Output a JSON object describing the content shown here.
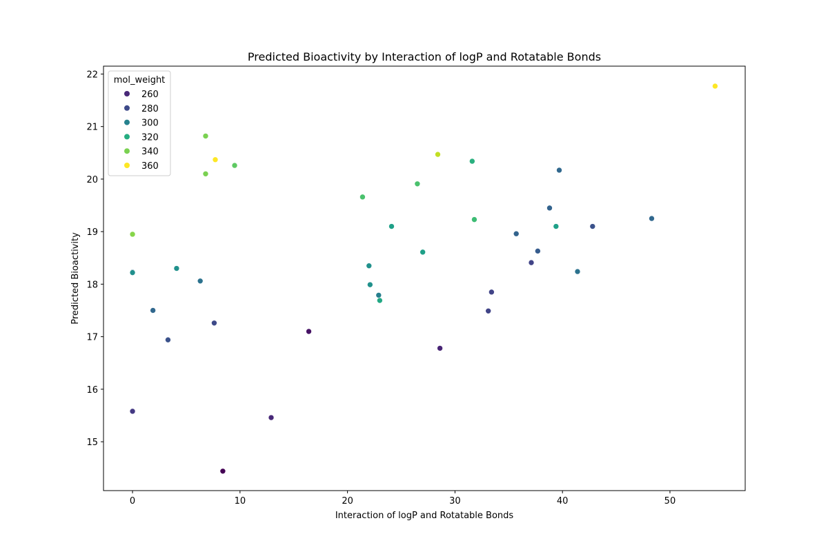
{
  "chart_data": {
    "type": "scatter",
    "title": "Predicted Bioactivity by Interaction of logP and Rotatable Bonds",
    "xlabel": "Interaction of logP and Rotatable Bonds",
    "ylabel": "Predicted Bioactivity",
    "xlim": [
      -2.7,
      57.0
    ],
    "ylim": [
      14.07,
      22.15
    ],
    "xticks": [
      "0",
      "10",
      "20",
      "30",
      "40",
      "50"
    ],
    "yticks": [
      "15",
      "16",
      "17",
      "18",
      "19",
      "20",
      "21",
      "22"
    ],
    "grid": false,
    "legend": {
      "title": "mol_weight",
      "placement": "top-left",
      "entries": [
        {
          "label": "260",
          "color": "#482878"
        },
        {
          "label": "280",
          "color": "#3e4a89"
        },
        {
          "label": "300",
          "color": "#26828e"
        },
        {
          "label": "320",
          "color": "#26ad81"
        },
        {
          "label": "340",
          "color": "#7ad151"
        },
        {
          "label": "360",
          "color": "#fde725"
        }
      ]
    },
    "points": [
      {
        "x": 0.0,
        "y": 18.95,
        "color": "#86d549"
      },
      {
        "x": 0.0,
        "y": 18.23,
        "color": "#2c728e"
      },
      {
        "x": 0.0,
        "y": 18.22,
        "color": "#21908d"
      },
      {
        "x": 0.0,
        "y": 15.58,
        "color": "#443983"
      },
      {
        "x": 1.9,
        "y": 17.5,
        "color": "#31688e"
      },
      {
        "x": 3.3,
        "y": 16.94,
        "color": "#3b528b"
      },
      {
        "x": 4.1,
        "y": 18.3,
        "color": "#21918c"
      },
      {
        "x": 6.3,
        "y": 18.06,
        "color": "#2c728e"
      },
      {
        "x": 6.8,
        "y": 20.82,
        "color": "#7ad151"
      },
      {
        "x": 6.8,
        "y": 20.1,
        "color": "#7ad151"
      },
      {
        "x": 7.6,
        "y": 17.26,
        "color": "#3e4a89"
      },
      {
        "x": 7.7,
        "y": 20.37,
        "color": "#fde725"
      },
      {
        "x": 8.4,
        "y": 14.44,
        "color": "#440154"
      },
      {
        "x": 9.5,
        "y": 20.26,
        "color": "#5ec962"
      },
      {
        "x": 12.9,
        "y": 15.46,
        "color": "#482878"
      },
      {
        "x": 16.4,
        "y": 17.1,
        "color": "#471365"
      },
      {
        "x": 21.4,
        "y": 19.66,
        "color": "#4ac16d"
      },
      {
        "x": 22.0,
        "y": 18.35,
        "color": "#21918c"
      },
      {
        "x": 22.1,
        "y": 17.99,
        "color": "#21918c"
      },
      {
        "x": 22.9,
        "y": 17.79,
        "color": "#277f8e"
      },
      {
        "x": 23.0,
        "y": 17.69,
        "color": "#22a884"
      },
      {
        "x": 24.1,
        "y": 19.1,
        "color": "#1fa088"
      },
      {
        "x": 26.5,
        "y": 19.91,
        "color": "#4ac16d"
      },
      {
        "x": 27.0,
        "y": 18.61,
        "color": "#1fa088"
      },
      {
        "x": 28.4,
        "y": 20.47,
        "color": "#c2df23"
      },
      {
        "x": 28.6,
        "y": 16.78,
        "color": "#482475"
      },
      {
        "x": 31.6,
        "y": 20.34,
        "color": "#2ab07f"
      },
      {
        "x": 31.8,
        "y": 19.23,
        "color": "#3dbc74"
      },
      {
        "x": 33.1,
        "y": 17.49,
        "color": "#414487"
      },
      {
        "x": 33.4,
        "y": 17.85,
        "color": "#414487"
      },
      {
        "x": 35.7,
        "y": 18.96,
        "color": "#33638d"
      },
      {
        "x": 37.1,
        "y": 18.41,
        "color": "#414487"
      },
      {
        "x": 37.7,
        "y": 18.63,
        "color": "#365c8d"
      },
      {
        "x": 38.8,
        "y": 19.45,
        "color": "#33638d"
      },
      {
        "x": 39.4,
        "y": 19.1,
        "color": "#1fa088"
      },
      {
        "x": 39.7,
        "y": 20.17,
        "color": "#31688e"
      },
      {
        "x": 41.4,
        "y": 18.24,
        "color": "#2c728e"
      },
      {
        "x": 42.8,
        "y": 19.1,
        "color": "#3b528b"
      },
      {
        "x": 48.3,
        "y": 19.25,
        "color": "#31688e"
      },
      {
        "x": 54.2,
        "y": 21.77,
        "color": "#fde725"
      }
    ]
  }
}
